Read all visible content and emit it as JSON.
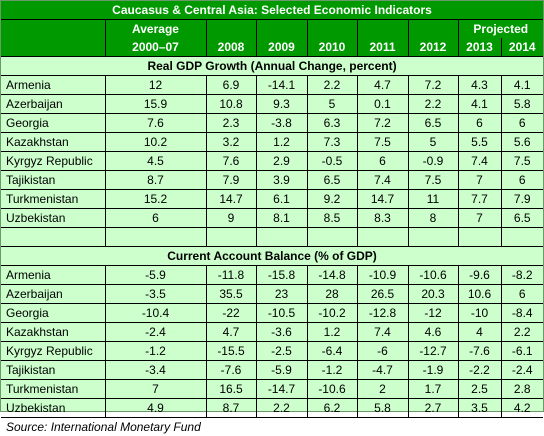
{
  "title": "Caucasus & Central Asia: Selected Economic Indicators",
  "header": {
    "average_label": "Average",
    "projected_label": "Projected",
    "years": [
      "2000–07",
      "2008",
      "2009",
      "2010",
      "2011",
      "2012",
      "2013",
      "2014"
    ]
  },
  "gdp": {
    "title": "Real GDP Growth (Annual Change, percent)",
    "rows": [
      {
        "country": "Armenia",
        "values": [
          "12",
          "6.9",
          "-14.1",
          "2.2",
          "4.7",
          "7.2",
          "4.3",
          "4.1"
        ]
      },
      {
        "country": "Azerbaijan",
        "values": [
          "15.9",
          "10.8",
          "9.3",
          "5",
          "0.1",
          "2.2",
          "4.1",
          "5.8"
        ]
      },
      {
        "country": "Georgia",
        "values": [
          "7.6",
          "2.3",
          "-3.8",
          "6.3",
          "7.2",
          "6.5",
          "6",
          "6"
        ]
      },
      {
        "country": "Kazakhstan",
        "values": [
          "10.2",
          "3.2",
          "1.2",
          "7.3",
          "7.5",
          "5",
          "5.5",
          "5.6"
        ]
      },
      {
        "country": "Kyrgyz Republic",
        "values": [
          "4.5",
          "7.6",
          "2.9",
          "-0.5",
          "6",
          "-0.9",
          "7.4",
          "7.5"
        ]
      },
      {
        "country": "Tajikistan",
        "values": [
          "8.7",
          "7.9",
          "3.9",
          "6.5",
          "7.4",
          "7.5",
          "7",
          "6"
        ]
      },
      {
        "country": "Turkmenistan",
        "values": [
          "15.2",
          "14.7",
          "6.1",
          "9.2",
          "14.7",
          "11",
          "7.7",
          "7.9"
        ]
      },
      {
        "country": "Uzbekistan",
        "values": [
          "6",
          "9",
          "8.1",
          "8.5",
          "8.3",
          "8",
          "7",
          "6.5"
        ]
      }
    ]
  },
  "cab": {
    "title": "Current Account Balance (% of GDP)",
    "rows": [
      {
        "country": "Armenia",
        "values": [
          "-5.9",
          "-11.8",
          "-15.8",
          "-14.8",
          "-10.9",
          "-10.6",
          "-9.6",
          "-8.2"
        ]
      },
      {
        "country": "Azerbaijan",
        "values": [
          "-3.5",
          "35.5",
          "23",
          "28",
          "26.5",
          "20.3",
          "10.6",
          "6"
        ]
      },
      {
        "country": "Georgia",
        "values": [
          "-10.4",
          "-22",
          "-10.5",
          "-10.2",
          "-12.8",
          "-12",
          "-10",
          "-8.4"
        ]
      },
      {
        "country": "Kazakhstan",
        "values": [
          "-2.4",
          "4.7",
          "-3.6",
          "1.2",
          "7.4",
          "4.6",
          "4",
          "2.2"
        ]
      },
      {
        "country": "Kyrgyz Republic",
        "values": [
          "-1.2",
          "-15.5",
          "-2.5",
          "-6.4",
          "-6",
          "-12.7",
          "-7.6",
          "-6.1"
        ]
      },
      {
        "country": "Tajikistan",
        "values": [
          "-3.4",
          "-7.6",
          "-5.9",
          "-1.2",
          "-4.7",
          "-1.9",
          "-2.2",
          "-2.4"
        ]
      },
      {
        "country": "Turkmenistan",
        "values": [
          "7",
          "16.5",
          "-14.7",
          "-10.6",
          "2",
          "1.7",
          "2.5",
          "2.8"
        ]
      },
      {
        "country": "Uzbekistan",
        "values": [
          "4.9",
          "8.7",
          "2.2",
          "6.2",
          "5.8",
          "2.7",
          "3.5",
          "4.2"
        ]
      }
    ]
  },
  "source": "Source: International Monetary Fund"
}
